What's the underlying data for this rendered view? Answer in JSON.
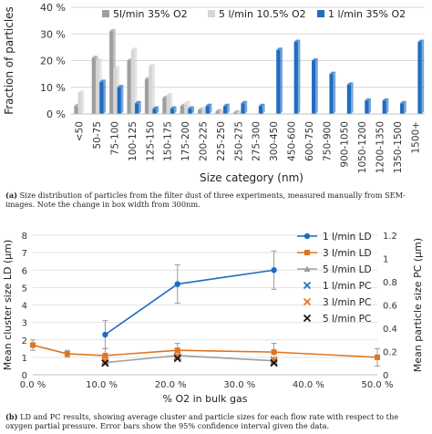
{
  "chart_data": [
    {
      "type": "bar",
      "title": "",
      "xlabel": "Size category (nm)",
      "ylabel": "Fraction of particles",
      "ylim": [
        0,
        40
      ],
      "yticks": [
        "0 %",
        "10 %",
        "20 %",
        "30 %",
        "40 %"
      ],
      "categories": [
        "<50",
        "50-75",
        "75-100",
        "100-125",
        "125-150",
        "150-175",
        "175-200",
        "200-225",
        "225-250",
        "250-275",
        "275-300",
        "300-450",
        "450-600",
        "600-750",
        "750-900",
        "900-1050",
        "1050-1200",
        "1200-1350",
        "1350-1500",
        "1500+"
      ],
      "series": [
        {
          "name": "5l/min 35% O2",
          "color": "#9e9e9e",
          "values": [
            3,
            21,
            31,
            20,
            13,
            6,
            3,
            1.5,
            1,
            0.5,
            0,
            0,
            0,
            0,
            0,
            0,
            0,
            0,
            0,
            0
          ]
        },
        {
          "name": "5 l/min 10.5% O2",
          "color": "#d6d6d6",
          "values": [
            8,
            20,
            17,
            24,
            18,
            7,
            4,
            2,
            1,
            0.5,
            0,
            0,
            0,
            0,
            0,
            0,
            0,
            0,
            0,
            0
          ]
        },
        {
          "name": "1 l/min 35% O2",
          "color": "#1f6cc2",
          "values": [
            0,
            12,
            10,
            4,
            2,
            2,
            2,
            3,
            3,
            4,
            3,
            24,
            27,
            20,
            15,
            11,
            5,
            5,
            4,
            27
          ]
        }
      ],
      "legend": "top"
    },
    {
      "type": "line",
      "title": "",
      "xlabel": "% O2 in bulk gas",
      "ylabel": "Mean cluster size LD (µm)",
      "ylabel_right": "Mean particle size PC (µm)",
      "xlim": [
        0,
        50
      ],
      "ylim": [
        0,
        8
      ],
      "ylim_right": [
        0,
        1.2
      ],
      "xticks": [
        "0.0 %",
        "10.0 %",
        "20.0 %",
        "30.0 %",
        "40.0 %",
        "50.0 %"
      ],
      "yticks": [
        "0",
        "1",
        "2",
        "3",
        "4",
        "5",
        "6",
        "7",
        "8"
      ],
      "yticks_right": [
        "0",
        "0.2",
        "0.4",
        "0.6",
        "0.8",
        "1",
        "1.2"
      ],
      "series": [
        {
          "name": "1 l/min LD",
          "color": "#1f6cc2",
          "marker": "circle",
          "x": [
            10.5,
            21,
            35
          ],
          "y": [
            2.3,
            5.2,
            6.0
          ],
          "err": [
            0.8,
            1.1,
            1.1
          ]
        },
        {
          "name": "3 l/min LD",
          "color": "#e0741f",
          "marker": "square",
          "x": [
            0,
            5,
            10.5,
            21,
            35,
            50
          ],
          "y": [
            1.7,
            1.2,
            1.1,
            1.4,
            1.3,
            1.0
          ],
          "err": [
            0.3,
            0.2,
            0.4,
            0.4,
            0.5,
            0.5
          ]
        },
        {
          "name": "5 l/min LD",
          "color": "#9e9e9e",
          "marker": "triangle",
          "x": [
            10.5,
            21,
            35
          ],
          "y": [
            0.7,
            1.1,
            0.8
          ],
          "err": [
            0,
            0,
            0
          ]
        },
        {
          "name": "1 l/min PC",
          "color": "#1f6cc2",
          "marker": "x",
          "axis": "right",
          "x": [
            10.5,
            21,
            35
          ],
          "y": [
            0.1,
            0.15,
            0.11
          ]
        },
        {
          "name": "3 l/min PC",
          "color": "#e0741f",
          "marker": "x",
          "axis": "right",
          "x": [
            10.5,
            21,
            35
          ],
          "y": [
            0.12,
            0.16,
            0.13
          ]
        },
        {
          "name": "5 l/min PC",
          "color": "#111111",
          "marker": "x",
          "axis": "right",
          "x": [
            10.5,
            21,
            35
          ],
          "y": [
            0.1,
            0.14,
            0.1
          ]
        }
      ],
      "legend": "top-right"
    }
  ],
  "captions": {
    "a_label": "(a)",
    "a_text": "Size distribution of particles from the filter dust of three experiments, measured manually from SEM-images. Note the change in box width from 300nm.",
    "b_label": "(b)",
    "b_text": "LD and PC results, showing average cluster and particle sizes for each flow rate with respect to the oxygen partial pressure. Error bars show the 95% confidence interval given the data."
  }
}
